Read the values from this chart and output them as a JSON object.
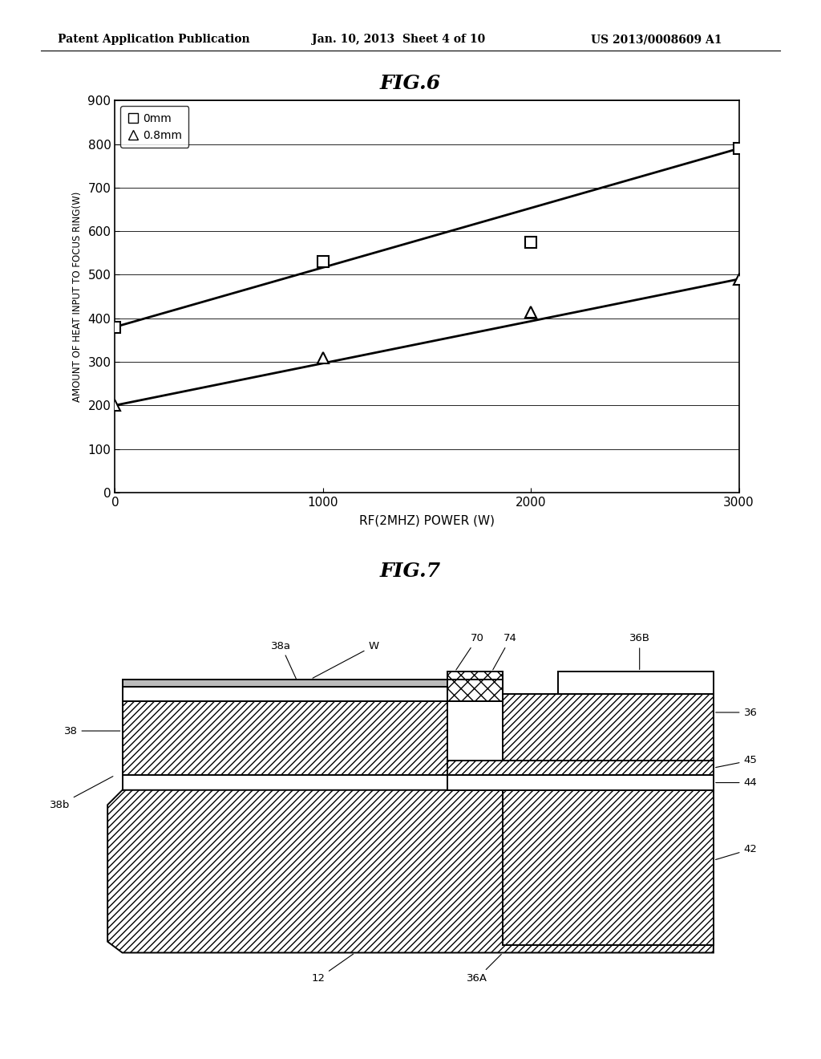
{
  "header_left": "Patent Application Publication",
  "header_center": "Jan. 10, 2013  Sheet 4 of 10",
  "header_right": "US 2013/0008609 A1",
  "fig6_title": "FIG.6",
  "fig6_xlabel": "RF(2MHZ) POWER (W)",
  "fig6_ylabel": "AMOUNT OF HEAT INPUT TO FOCUS RING(W)",
  "fig6_xlim": [
    0,
    3000
  ],
  "fig6_ylim": [
    0,
    900
  ],
  "fig6_xticks": [
    0,
    1000,
    2000,
    3000
  ],
  "fig6_yticks": [
    0,
    100,
    200,
    300,
    400,
    500,
    600,
    700,
    800,
    900
  ],
  "series1_label": "0mm",
  "series1_x": [
    0,
    1000,
    2000,
    3000
  ],
  "series1_y": [
    380,
    530,
    575,
    790
  ],
  "series2_label": "0.8mm",
  "series2_x": [
    0,
    1000,
    2000,
    3000
  ],
  "series2_y": [
    200,
    310,
    415,
    490
  ],
  "fig7_title": "FIG.7",
  "background_color": "#ffffff"
}
